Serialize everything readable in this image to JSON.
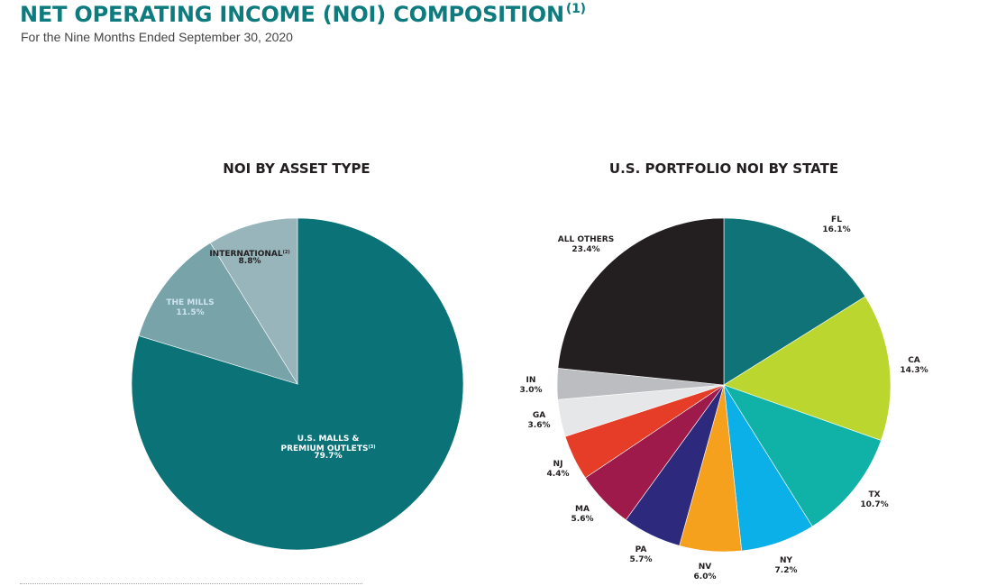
{
  "header": {
    "title": "NET OPERATING INCOME (NOI) COMPOSITION",
    "title_note": "(1)",
    "subtitle": "For the Nine Months Ended September 30, 2020"
  },
  "chart_data": [
    {
      "type": "pie",
      "title": "NOI BY ASSET TYPE",
      "start": "12 o'clock",
      "direction": "clockwise",
      "slices": [
        {
          "label_lines": [
            "U.S. MALLS &",
            "PREMIUM OUTLETS"
          ],
          "note": "(3)",
          "value": 79.7,
          "display": "79.7%",
          "color": "#0b7278",
          "label_style": "light"
        },
        {
          "label_lines": [
            "THE MILLS"
          ],
          "note": "",
          "value": 11.5,
          "display": "11.5%",
          "color": "#77a3a9",
          "label_style": "mills"
        },
        {
          "label_lines": [
            "INTERNATIONAL"
          ],
          "note": "(2)",
          "value": 8.8,
          "display": "8.8%",
          "color": "#97b5bb",
          "label_style": "dark"
        }
      ]
    },
    {
      "type": "pie",
      "title": "U.S. PORTFOLIO NOI BY STATE",
      "start": "12 o'clock",
      "direction": "clockwise",
      "slices": [
        {
          "label_lines": [
            "FL"
          ],
          "value": 16.1,
          "display": "16.1%",
          "color": "#0f7377"
        },
        {
          "label_lines": [
            "CA"
          ],
          "value": 14.3,
          "display": "14.3%",
          "color": "#bcd630"
        },
        {
          "label_lines": [
            "TX"
          ],
          "value": 10.7,
          "display": "10.7%",
          "color": "#10b2a7"
        },
        {
          "label_lines": [
            "NY"
          ],
          "value": 7.2,
          "display": "7.2%",
          "color": "#0cb0e8"
        },
        {
          "label_lines": [
            "NV"
          ],
          "value": 6.0,
          "display": "6.0%",
          "color": "#f6a11d"
        },
        {
          "label_lines": [
            "PA"
          ],
          "value": 5.7,
          "display": "5.7%",
          "color": "#2d2a7e"
        },
        {
          "label_lines": [
            "MA"
          ],
          "value": 5.6,
          "display": "5.6%",
          "color": "#9d1a4a"
        },
        {
          "label_lines": [
            "NJ"
          ],
          "value": 4.4,
          "display": "4.4%",
          "color": "#e53d27"
        },
        {
          "label_lines": [
            "GA"
          ],
          "value": 3.6,
          "display": "3.6%",
          "color": "#e6e7e8"
        },
        {
          "label_lines": [
            "IN"
          ],
          "value": 3.0,
          "display": "3.0%",
          "color": "#bcbdc0"
        },
        {
          "label_lines": [
            "ALL OTHERS"
          ],
          "value": 23.4,
          "display": "23.4%",
          "color": "#231f20"
        }
      ]
    }
  ]
}
